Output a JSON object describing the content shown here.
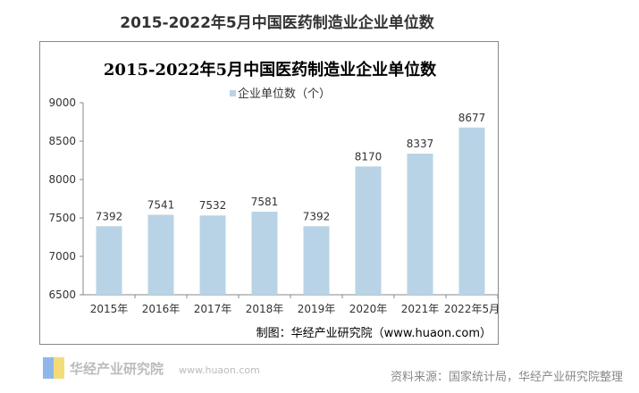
{
  "page_title": "2015-2022年5月中国医药制造业企业单位数",
  "source": "资料来源：国家统计局，华经产业研究院整理",
  "watermark": "华经产业研究院 www.huaon.com",
  "chart_data": {
    "type": "bar",
    "title": "2015-2022年5月中国医药制造业企业单位数",
    "categories": [
      "2015年",
      "2016年",
      "2017年",
      "2018年",
      "2019年",
      "2020年",
      "2021年",
      "2022年5月"
    ],
    "series": [
      {
        "name": "企业单位数（个）",
        "values": [
          7392,
          7541,
          7532,
          7581,
          7392,
          8170,
          8337,
          8677
        ]
      }
    ],
    "ylim": [
      6500,
      9000
    ],
    "yticks": [
      6500,
      7000,
      7500,
      8000,
      8500,
      9000
    ],
    "grid": false,
    "legend": "top-center",
    "bar_color": "#b8d3e6",
    "credit": "制图：华经产业研究院（www.huaon.com）"
  }
}
